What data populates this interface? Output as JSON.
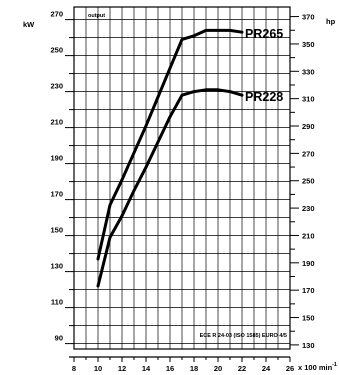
{
  "chart_data": {
    "type": "line",
    "title": "output",
    "left_unit": "kW",
    "right_unit": "hp",
    "xunit": "x 100 min",
    "xunit_sup": "-1",
    "note": "ECE R 24-03 (ISO 1585) EURO 4/5",
    "xlim": [
      8,
      26
    ],
    "ylim_left": [
      87,
      277
    ],
    "ylim_right": [
      127,
      377
    ],
    "x_ticks": [
      "8",
      "10",
      "12",
      "14",
      "16",
      "18",
      "20",
      "22",
      "24",
      "26"
    ],
    "left_ticks": [
      "90",
      "110",
      "130",
      "150",
      "170",
      "190",
      "210",
      "230",
      "250",
      "270"
    ],
    "right_ticks": [
      "130",
      "150",
      "170",
      "190",
      "210",
      "230",
      "250",
      "270",
      "290",
      "310",
      "330",
      "350",
      "370"
    ],
    "grid": true,
    "series": [
      {
        "name": "PR265",
        "x": [
          10,
          11,
          12,
          13,
          14,
          15,
          16,
          17,
          18,
          19,
          20,
          21,
          22
        ],
        "y": [
          137,
          167,
          181,
          196,
          211,
          227,
          243,
          259,
          261,
          264,
          264,
          264,
          263
        ]
      },
      {
        "name": "PR228",
        "x": [
          10,
          11,
          12,
          13,
          14,
          15,
          16,
          17,
          18,
          19,
          20,
          21,
          22
        ],
        "y": [
          122,
          149,
          161,
          175,
          188,
          202,
          216,
          228,
          230,
          231,
          231,
          230,
          228
        ]
      }
    ]
  }
}
